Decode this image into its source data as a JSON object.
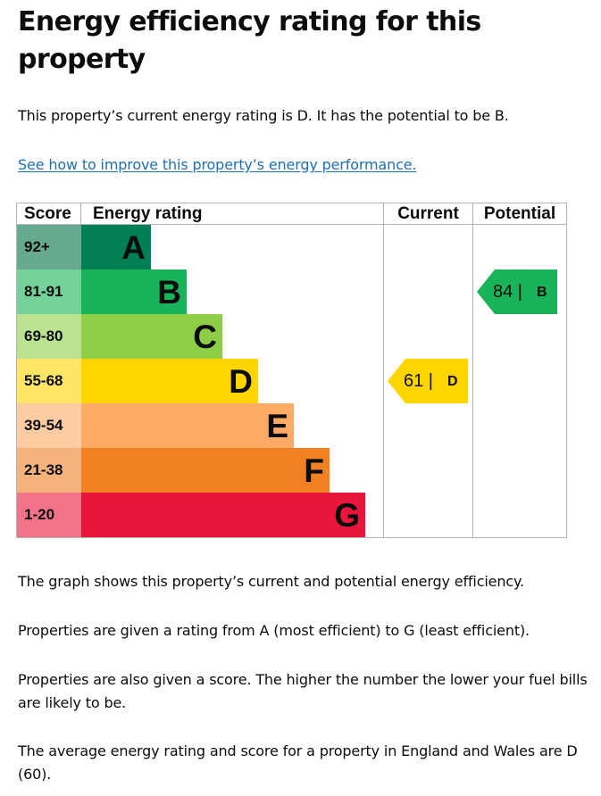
{
  "page": {
    "title": "Energy efficiency rating for this property",
    "intro": "This property’s current energy rating is D. It has the potential to be B.",
    "improve_link": "See how to improve this property’s energy performance.",
    "para_graph": "The graph shows this property’s current and potential energy efficiency.",
    "para_ratings": "Properties are given a rating from A (most efficient) to G (least efficient).",
    "para_score": "Properties are also given a score. The higher the number the lower your fuel bills are likely to be.",
    "para_average": "The average energy rating and score for a property in England and Wales are D (60)."
  },
  "epc": {
    "headers": {
      "score": "Score",
      "rating": "Energy rating",
      "current": "Current",
      "potential": "Potential"
    },
    "bands": [
      {
        "score": "92+",
        "letter": "A",
        "color": "#008054",
        "score_bg": "#66a98e"
      },
      {
        "score": "81-91",
        "letter": "B",
        "color": "#19b459",
        "score_bg": "#75d29b"
      },
      {
        "score": "69-80",
        "letter": "C",
        "color": "#8dce46",
        "score_bg": "#bbe290"
      },
      {
        "score": "55-68",
        "letter": "D",
        "color": "#ffd500",
        "score_bg": "#ffe566"
      },
      {
        "score": "39-54",
        "letter": "E",
        "color": "#fcaa65",
        "score_bg": "#fdcca3"
      },
      {
        "score": "21-38",
        "letter": "F",
        "color": "#ef8023",
        "score_bg": "#f5b37b"
      },
      {
        "score": "1-20",
        "letter": "G",
        "color": "#e9153b",
        "score_bg": "#f27389"
      }
    ],
    "current": {
      "value": "61 |",
      "letter": "D",
      "band_index": 3,
      "color": "#ffd500"
    },
    "potential": {
      "value": "84 |",
      "letter": "B",
      "band_index": 1,
      "color": "#19b459"
    }
  }
}
